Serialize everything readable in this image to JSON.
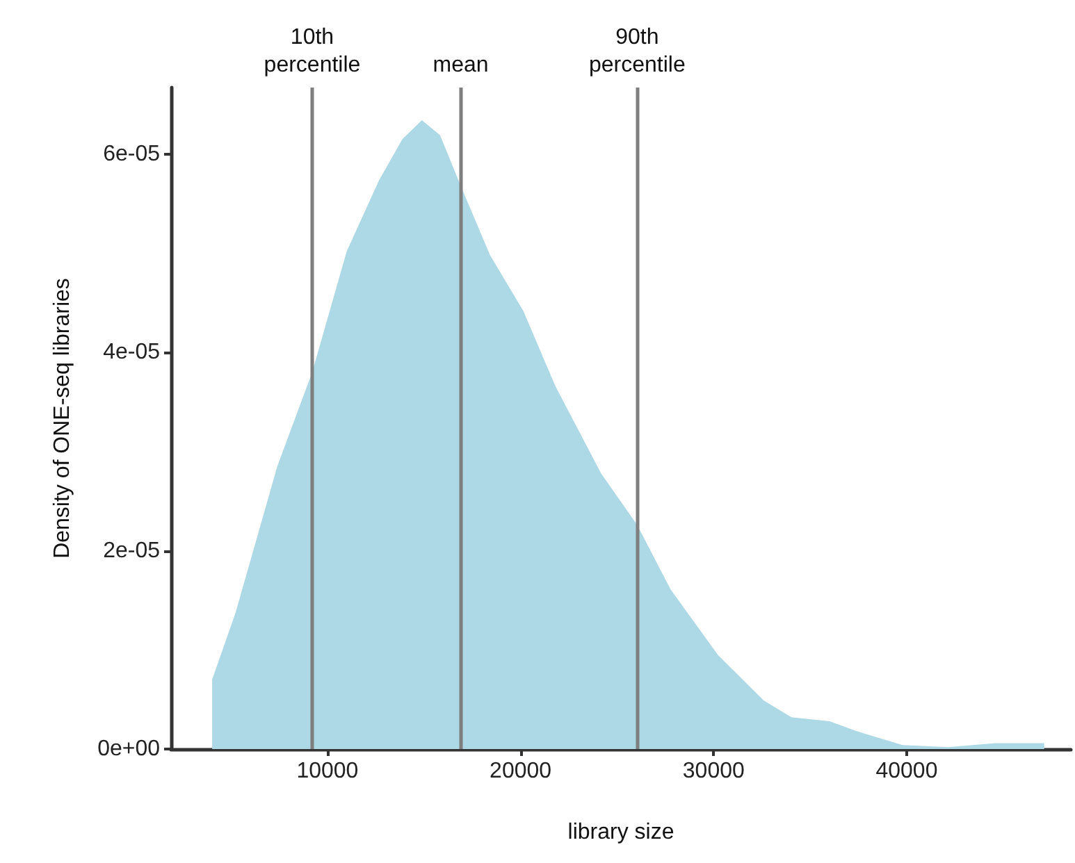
{
  "chart_data": {
    "type": "area",
    "xlabel": "library size",
    "ylabel": "Density of ONE-seq libraries",
    "color": "#add8e6",
    "x": [
      4030,
      5250,
      7400,
      9210,
      11000,
      12660,
      13880,
      14890,
      15830,
      16900,
      18420,
      20140,
      21800,
      24170,
      26040,
      27770,
      30220,
      32590,
      34030,
      36000,
      37410,
      39780,
      42160,
      44600,
      47120
    ],
    "values": [
      7e-06,
      1.38e-05,
      2.85e-05,
      3.8e-05,
      5.02e-05,
      5.73e-05,
      6.15e-05,
      6.34e-05,
      6.19e-05,
      5.68e-05,
      4.98e-05,
      4.42e-05,
      3.66e-05,
      2.78e-05,
      2.26e-05,
      1.61e-05,
      9.5e-06,
      4.9e-06,
      3.2e-06,
      2.8e-06,
      1.8e-06,
      4e-07,
      2e-07,
      6e-07,
      6e-07
    ],
    "xlim": [
      1900,
      48500
    ],
    "ylim": [
      0,
      6.67e-05
    ],
    "xticks": [
      10000,
      20000,
      30000,
      40000
    ],
    "yticks": [
      {
        "value": 0,
        "label": "0e+00"
      },
      {
        "value": 2e-05,
        "label": "2e-05"
      },
      {
        "value": 4e-05,
        "label": "4e-05"
      },
      {
        "value": 6e-05,
        "label": "6e-05"
      }
    ],
    "ref_lines": [
      {
        "axis": "x",
        "value": 9210,
        "label": "10th\npercentile",
        "color": "#7f7f7f"
      },
      {
        "axis": "x",
        "value": 16900,
        "label": "mean",
        "color": "#7f7f7f"
      },
      {
        "axis": "x",
        "value": 26040,
        "label": "90th\npercentile",
        "color": "#7f7f7f"
      }
    ]
  }
}
